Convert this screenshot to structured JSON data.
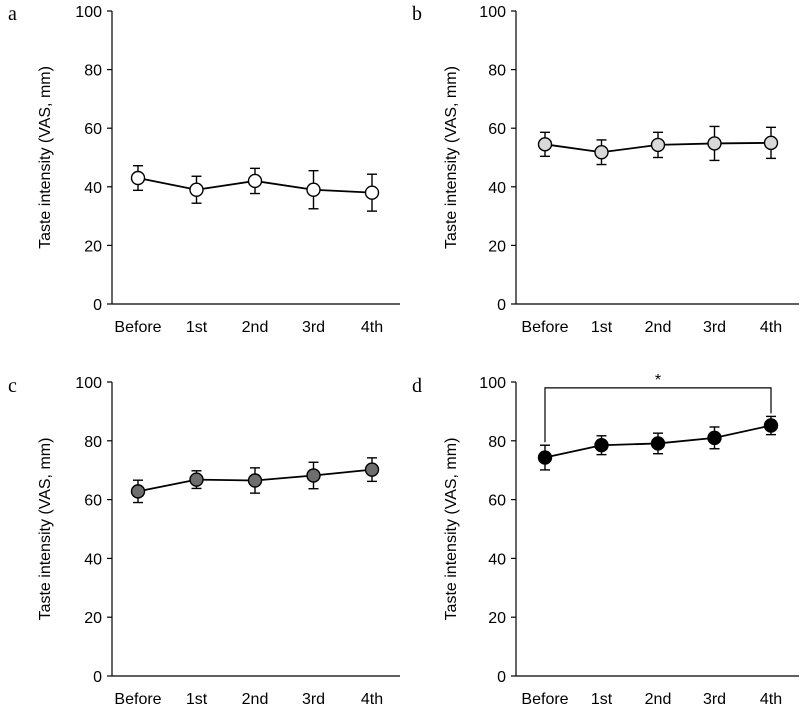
{
  "chart_data": [
    {
      "panel": "a",
      "type": "line",
      "title": "",
      "xlabel": "",
      "ylabel": "Taste intensity (VAS, mm)",
      "ylim": [
        0,
        100
      ],
      "yticks": [
        0,
        20,
        40,
        60,
        80,
        100
      ],
      "categories": [
        "Before",
        "1st",
        "2nd",
        "3rd",
        "4th"
      ],
      "series": [
        {
          "name": "a",
          "marker_fill": "#ffffff",
          "values": [
            43,
            39,
            42,
            39,
            38
          ],
          "errors": [
            4.2,
            4.6,
            4.3,
            6.5,
            6.3
          ]
        }
      ],
      "significance": null
    },
    {
      "panel": "b",
      "type": "line",
      "title": "",
      "xlabel": "",
      "ylabel": "Taste intensity (VAS, mm)",
      "ylim": [
        0,
        100
      ],
      "yticks": [
        0,
        20,
        40,
        60,
        80,
        100
      ],
      "categories": [
        "Before",
        "1st",
        "2nd",
        "3rd",
        "4th"
      ],
      "series": [
        {
          "name": "b",
          "marker_fill": "#d9d9d9",
          "values": [
            54.5,
            51.8,
            54.3,
            54.8,
            55
          ],
          "errors": [
            4.1,
            4.2,
            4.3,
            5.8,
            5.3
          ]
        }
      ],
      "significance": null
    },
    {
      "panel": "c",
      "type": "line",
      "title": "",
      "xlabel": "",
      "ylabel": "Taste intensity (VAS, mm)",
      "ylim": [
        0,
        100
      ],
      "yticks": [
        0,
        20,
        40,
        60,
        80,
        100
      ],
      "categories": [
        "Before",
        "1st",
        "2nd",
        "3rd",
        "4th"
      ],
      "series": [
        {
          "name": "c",
          "marker_fill": "#6e6e6e",
          "values": [
            62.8,
            66.8,
            66.5,
            68.2,
            70.2
          ],
          "errors": [
            3.8,
            3,
            4.3,
            4.5,
            4
          ]
        }
      ],
      "significance": null
    },
    {
      "panel": "d",
      "type": "line",
      "title": "",
      "xlabel": "",
      "ylabel": "Taste intensity (VAS, mm)",
      "ylim": [
        0,
        100
      ],
      "yticks": [
        0,
        20,
        40,
        60,
        80,
        100
      ],
      "categories": [
        "Before",
        "1st",
        "2nd",
        "3rd",
        "4th"
      ],
      "series": [
        {
          "name": "d",
          "marker_fill": "#000000",
          "values": [
            74.3,
            78.5,
            79.1,
            81,
            85.2
          ],
          "errors": [
            4.2,
            3.2,
            3.5,
            3.7,
            3.1
          ]
        }
      ],
      "significance": {
        "from": "Before",
        "to": "4th",
        "label": "*"
      }
    }
  ],
  "colors": {
    "axis": "#000000",
    "line": "#000000",
    "marker_edge": "#000000"
  }
}
